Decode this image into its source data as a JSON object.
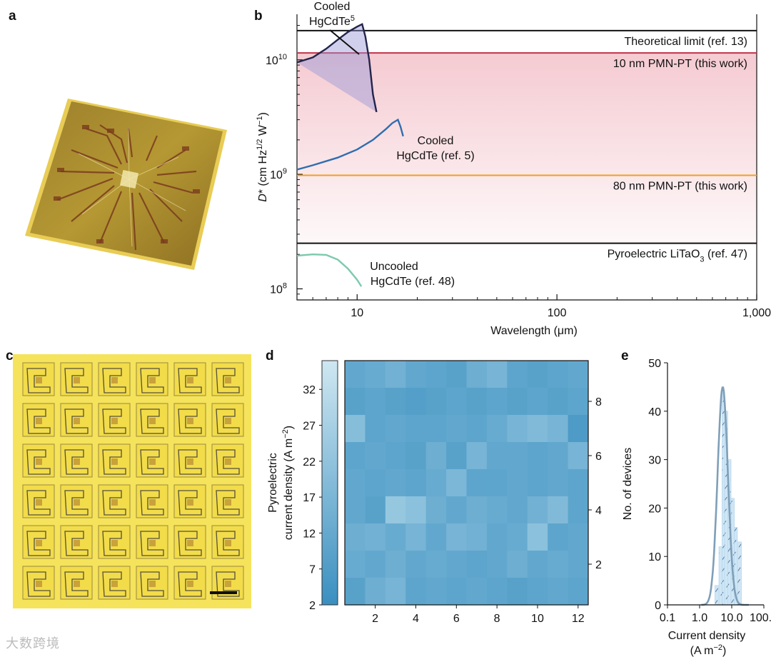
{
  "panels": {
    "a": "a",
    "b": "b",
    "c": "c",
    "d": "d",
    "e": "e"
  },
  "watermark": "大数跨境",
  "colors": {
    "chip_gold": "#b89a3a",
    "limit_black": "#111111",
    "pmn10": "#c0324a",
    "pmn80": "#f0a020",
    "cooled5": "#2f6db0",
    "uncooled": "#7cc9ad",
    "band_pink": "#f4c8cf",
    "heat_dark": "#3a8fc0",
    "heat_light": "#a9d3e6",
    "hist_fill": "#cfe6f5",
    "hist_curve": "#7f9fb8"
  },
  "chart_data": [
    {
      "panel": "b",
      "type": "line",
      "xlabel": "Wavelength (μm)",
      "ylabel": "D* (cm Hz1/2 W−1)",
      "xscale": "log",
      "yscale": "log",
      "xlim": [
        5,
        1000
      ],
      "ylim": [
        80000000,
        25000000000
      ],
      "xticks": [
        10,
        100,
        1000
      ],
      "xtick_labels": [
        "10",
        "100",
        "1,000"
      ],
      "yticks": [
        100000000,
        1000000000,
        10000000000
      ],
      "ytick_labels": [
        "10",
        "10",
        "10"
      ],
      "ytick_exponents": [
        "8",
        "9",
        "10"
      ],
      "hlines": [
        {
          "name": "Theoretical limit (ref. 13)",
          "y": 18000000000
        },
        {
          "name": "10 nm PMN-PT (this work)",
          "y": 11500000000
        },
        {
          "name": "80 nm PMN-PT (this work)",
          "y": 980000000
        },
        {
          "name": "Pyroelectric LiTaO",
          "sub": "3",
          "suffix": " (ref. 47)",
          "y": 250000000
        }
      ],
      "series": [
        {
          "name_line1": "Cooled",
          "name_line2": "HgCdTe",
          "sup": "5",
          "x": [
            5,
            6,
            7,
            8,
            9,
            10,
            10.6,
            11,
            11.5,
            12,
            12.5
          ],
          "y": [
            9500000000,
            10500000000,
            12500000000,
            15000000000,
            17500000000,
            19500000000,
            20500000000,
            16000000000,
            10000000000,
            5000000000,
            3500000000
          ]
        },
        {
          "name_line1": "Cooled",
          "name_line2": "HgCdTe (ref. 5)",
          "x": [
            5,
            6,
            8,
            10,
            12,
            14,
            15,
            16,
            16.5,
            17
          ],
          "y": [
            1100000000,
            1200000000,
            1400000000,
            1650000000,
            2000000000,
            2500000000,
            2800000000,
            3000000000,
            2600000000,
            2150000000
          ]
        },
        {
          "name_line1": "Uncooled",
          "name_line2": "HgCdTe (ref. 48)",
          "x": [
            5,
            6,
            7,
            8,
            9,
            10,
            10.5
          ],
          "y": [
            195000000,
            200000000,
            198000000,
            180000000,
            150000000,
            120000000,
            105000000
          ]
        }
      ]
    },
    {
      "panel": "d",
      "type": "heatmap",
      "colorbar_label_line1": "Pyroelectric",
      "colorbar_label_line2": "current density (A m",
      "colorbar_label_sup": "−2",
      "colorbar_ticks": [
        "2",
        "7",
        "12",
        "17",
        "22",
        "27",
        "32"
      ],
      "colorbar_range": [
        2,
        36
      ],
      "xticks": [
        "2",
        "4",
        "6",
        "8",
        "10",
        "12"
      ],
      "yticks": [
        "2",
        "4",
        "6",
        "8"
      ],
      "rows": 9,
      "cols": 12,
      "values": [
        [
          10,
          11,
          13,
          10,
          9,
          8,
          12,
          14,
          9,
          8,
          9,
          10
        ],
        [
          8,
          9,
          8,
          7,
          8,
          9,
          8,
          9,
          8,
          9,
          8,
          9
        ],
        [
          17,
          9,
          10,
          9,
          9,
          10,
          9,
          11,
          14,
          16,
          14,
          6
        ],
        [
          9,
          10,
          9,
          8,
          12,
          8,
          14,
          10,
          10,
          9,
          10,
          14
        ],
        [
          10,
          9,
          10,
          9,
          11,
          15,
          9,
          9,
          10,
          9,
          10,
          9
        ],
        [
          10,
          8,
          20,
          18,
          12,
          10,
          12,
          11,
          10,
          13,
          16,
          9
        ],
        [
          12,
          13,
          11,
          14,
          10,
          14,
          13,
          10,
          11,
          18,
          9,
          10
        ],
        [
          11,
          10,
          12,
          10,
          11,
          10,
          9,
          10,
          12,
          10,
          11,
          10
        ],
        [
          8,
          12,
          14,
          9,
          10,
          9,
          10,
          9,
          8,
          9,
          10,
          9
        ]
      ]
    },
    {
      "panel": "e",
      "type": "bar",
      "xlabel_line1": "Current density",
      "xlabel_line2": "(A m",
      "xlabel_sup": "−2",
      "ylabel": "No. of devices",
      "xscale": "log",
      "xlim": [
        0.1,
        100
      ],
      "ylim": [
        0,
        50
      ],
      "xtick_labels": [
        "0.1",
        "1.0",
        "10.0",
        "100.0"
      ],
      "yticks": [
        0,
        10,
        20,
        30,
        40,
        50
      ],
      "bins": [
        {
          "lo": 3.0,
          "hi": 4.0,
          "count": 4
        },
        {
          "lo": 4.0,
          "hi": 5.0,
          "count": 12
        },
        {
          "lo": 5.0,
          "hi": 6.0,
          "count": 44
        },
        {
          "lo": 6.0,
          "hi": 7.5,
          "count": 40
        },
        {
          "lo": 7.5,
          "hi": 9.5,
          "count": 30
        },
        {
          "lo": 9.5,
          "hi": 12.0,
          "count": 22
        },
        {
          "lo": 12.0,
          "hi": 15.0,
          "count": 16
        },
        {
          "lo": 15.0,
          "hi": 20.0,
          "count": 13
        }
      ],
      "fit": {
        "mu_log10": 0.72,
        "sigma_log10": 0.16,
        "peak": 45
      }
    }
  ]
}
